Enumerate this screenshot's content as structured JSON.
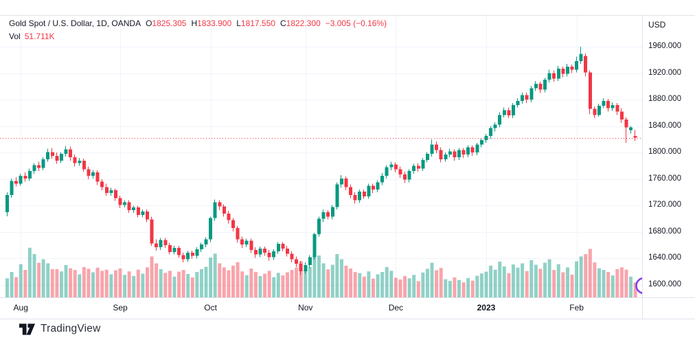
{
  "header": {
    "symbol": "Gold Spot / U.S. Dollar, 1D, OANDA",
    "o_label": "O",
    "o_value": "1825.305",
    "h_label": "H",
    "h_value": "1833.900",
    "l_label": "L",
    "l_value": "1817.550",
    "c_label": "C",
    "c_value": "1822.300",
    "change": "−3.005 (−0.16%)",
    "vol_label": "Vol",
    "vol_value": "51.711K"
  },
  "axes": {
    "currency_label": "USD"
  },
  "footer": {
    "logo_text": "TradingView"
  },
  "chart_data": {
    "type": "candlestick",
    "title": "Gold Spot / U.S. Dollar",
    "timeframe": "1D",
    "exchange": "OANDA",
    "legend_position": "top-left",
    "grid": true,
    "last_price": 1822.3,
    "last_change": -3.005,
    "last_change_pct": -0.16,
    "last_volume_k": 51.711,
    "y_ticks": [
      1960,
      1920,
      1880,
      1840,
      1800,
      1760,
      1720,
      1680,
      1640,
      1600
    ],
    "x_ticks": [
      {
        "label": "Aug",
        "index": 3,
        "bold": false
      },
      {
        "label": "Sep",
        "index": 25,
        "bold": false
      },
      {
        "label": "Oct",
        "index": 45,
        "bold": false
      },
      {
        "label": "Nov",
        "index": 66,
        "bold": false
      },
      {
        "label": "Dec",
        "index": 86,
        "bold": false
      },
      {
        "label": "2023",
        "index": 106,
        "bold": true
      },
      {
        "label": "Feb",
        "index": 126,
        "bold": false
      }
    ],
    "colors": {
      "up": "#089981",
      "down": "#f23645",
      "vol_up": "#089981",
      "vol_down": "#f23645",
      "price_line": "#f23645",
      "grid": "#f0f3fa",
      "border": "#e0e3eb",
      "watermark_arc": "#7c3aed"
    },
    "series_format": "[open, high, low, close, volume_k]",
    "candles": [
      [
        1710,
        1740,
        1704,
        1736,
        66
      ],
      [
        1736,
        1761,
        1732,
        1757,
        88
      ],
      [
        1757,
        1763,
        1749,
        1753,
        70
      ],
      [
        1753,
        1768,
        1750,
        1765,
        115
      ],
      [
        1765,
        1770,
        1756,
        1761,
        95
      ],
      [
        1761,
        1776,
        1757,
        1772,
        172
      ],
      [
        1772,
        1784,
        1768,
        1781,
        150
      ],
      [
        1781,
        1786,
        1772,
        1777,
        120
      ],
      [
        1777,
        1793,
        1773,
        1790,
        132
      ],
      [
        1790,
        1806,
        1786,
        1801,
        118
      ],
      [
        1801,
        1807,
        1791,
        1795,
        98
      ],
      [
        1795,
        1800,
        1783,
        1788,
        98
      ],
      [
        1788,
        1801,
        1784,
        1798,
        90
      ],
      [
        1798,
        1810,
        1794,
        1805,
        112
      ],
      [
        1805,
        1809,
        1788,
        1793,
        101
      ],
      [
        1793,
        1797,
        1779,
        1784,
        95
      ],
      [
        1784,
        1792,
        1780,
        1788,
        80
      ],
      [
        1788,
        1791,
        1771,
        1775,
        105
      ],
      [
        1775,
        1779,
        1760,
        1765,
        99
      ],
      [
        1765,
        1774,
        1761,
        1770,
        87
      ],
      [
        1770,
        1773,
        1751,
        1756,
        103
      ],
      [
        1756,
        1760,
        1743,
        1748,
        92
      ],
      [
        1748,
        1753,
        1735,
        1739,
        96
      ],
      [
        1739,
        1747,
        1735,
        1743,
        80
      ],
      [
        1743,
        1746,
        1727,
        1731,
        94
      ],
      [
        1731,
        1735,
        1716,
        1721,
        100
      ],
      [
        1721,
        1728,
        1717,
        1725,
        78
      ],
      [
        1725,
        1728,
        1709,
        1713,
        90
      ],
      [
        1713,
        1720,
        1709,
        1717,
        74
      ],
      [
        1717,
        1720,
        1702,
        1706,
        96
      ],
      [
        1706,
        1714,
        1702,
        1711,
        82
      ],
      [
        1711,
        1714,
        1695,
        1699,
        104
      ],
      [
        1699,
        1703,
        1659,
        1663,
        142
      ],
      [
        1663,
        1669,
        1652,
        1657,
        118
      ],
      [
        1657,
        1671,
        1653,
        1668,
        98
      ],
      [
        1668,
        1671,
        1656,
        1660,
        85
      ],
      [
        1660,
        1664,
        1646,
        1650,
        92
      ],
      [
        1650,
        1659,
        1646,
        1656,
        72
      ],
      [
        1656,
        1659,
        1641,
        1645,
        89
      ],
      [
        1645,
        1649,
        1634,
        1639,
        95
      ],
      [
        1639,
        1652,
        1635,
        1649,
        81
      ],
      [
        1649,
        1652,
        1640,
        1644,
        69
      ],
      [
        1644,
        1657,
        1640,
        1654,
        88
      ],
      [
        1654,
        1664,
        1650,
        1661,
        98
      ],
      [
        1661,
        1672,
        1657,
        1669,
        106
      ],
      [
        1669,
        1703,
        1665,
        1701,
        138
      ],
      [
        1701,
        1729,
        1697,
        1725,
        152
      ],
      [
        1725,
        1728,
        1713,
        1719,
        118
      ],
      [
        1719,
        1722,
        1703,
        1708,
        104
      ],
      [
        1708,
        1712,
        1693,
        1698,
        94
      ],
      [
        1698,
        1701,
        1681,
        1686,
        110
      ],
      [
        1686,
        1689,
        1664,
        1669,
        122
      ],
      [
        1669,
        1673,
        1656,
        1661,
        90
      ],
      [
        1661,
        1670,
        1657,
        1667,
        77
      ],
      [
        1667,
        1670,
        1648,
        1653,
        100
      ],
      [
        1653,
        1657,
        1641,
        1646,
        88
      ],
      [
        1646,
        1658,
        1642,
        1655,
        74
      ],
      [
        1655,
        1658,
        1644,
        1649,
        82
      ],
      [
        1649,
        1653,
        1637,
        1642,
        92
      ],
      [
        1642,
        1654,
        1638,
        1651,
        70
      ],
      [
        1651,
        1665,
        1647,
        1662,
        85
      ],
      [
        1662,
        1665,
        1651,
        1655,
        76
      ],
      [
        1655,
        1659,
        1643,
        1647,
        87
      ],
      [
        1647,
        1651,
        1634,
        1639,
        95
      ],
      [
        1639,
        1643,
        1627,
        1632,
        103
      ],
      [
        1632,
        1636,
        1615,
        1621,
        126
      ],
      [
        1621,
        1634,
        1617,
        1630,
        93
      ],
      [
        1630,
        1645,
        1626,
        1642,
        105
      ],
      [
        1642,
        1679,
        1638,
        1677,
        155
      ],
      [
        1677,
        1703,
        1673,
        1700,
        145
      ],
      [
        1700,
        1714,
        1695,
        1710,
        118
      ],
      [
        1710,
        1713,
        1699,
        1703,
        97
      ],
      [
        1703,
        1721,
        1699,
        1718,
        113
      ],
      [
        1718,
        1755,
        1714,
        1752,
        150
      ],
      [
        1752,
        1766,
        1747,
        1761,
        132
      ],
      [
        1761,
        1764,
        1743,
        1748,
        110
      ],
      [
        1748,
        1752,
        1731,
        1736,
        100
      ],
      [
        1736,
        1740,
        1723,
        1728,
        88
      ],
      [
        1728,
        1744,
        1724,
        1741,
        84
      ],
      [
        1741,
        1744,
        1730,
        1734,
        72
      ],
      [
        1734,
        1753,
        1730,
        1750,
        90
      ],
      [
        1750,
        1753,
        1739,
        1744,
        65
      ],
      [
        1744,
        1758,
        1740,
        1755,
        80
      ],
      [
        1755,
        1769,
        1751,
        1765,
        88
      ],
      [
        1765,
        1781,
        1761,
        1778,
        105
      ],
      [
        1778,
        1786,
        1773,
        1782,
        92
      ],
      [
        1782,
        1785,
        1770,
        1775,
        68
      ],
      [
        1775,
        1779,
        1762,
        1767,
        62
      ],
      [
        1767,
        1771,
        1754,
        1759,
        74
      ],
      [
        1759,
        1775,
        1755,
        1772,
        66
      ],
      [
        1772,
        1783,
        1768,
        1780,
        78
      ],
      [
        1780,
        1784,
        1771,
        1776,
        56
      ],
      [
        1776,
        1792,
        1772,
        1789,
        86
      ],
      [
        1789,
        1801,
        1785,
        1798,
        99
      ],
      [
        1798,
        1820,
        1794,
        1812,
        120
      ],
      [
        1812,
        1817,
        1799,
        1804,
        94
      ],
      [
        1804,
        1808,
        1785,
        1790,
        102
      ],
      [
        1790,
        1800,
        1786,
        1797,
        63
      ],
      [
        1797,
        1806,
        1793,
        1802,
        57
      ],
      [
        1802,
        1805,
        1788,
        1793,
        69
      ],
      [
        1793,
        1807,
        1789,
        1804,
        60
      ],
      [
        1804,
        1807,
        1792,
        1797,
        52
      ],
      [
        1797,
        1811,
        1793,
        1808,
        67
      ],
      [
        1808,
        1811,
        1795,
        1800,
        58
      ],
      [
        1800,
        1815,
        1796,
        1812,
        75
      ],
      [
        1812,
        1822,
        1808,
        1819,
        83
      ],
      [
        1819,
        1828,
        1815,
        1825,
        89
      ],
      [
        1825,
        1840,
        1821,
        1837,
        110
      ],
      [
        1837,
        1846,
        1832,
        1842,
        96
      ],
      [
        1842,
        1861,
        1838,
        1857,
        124
      ],
      [
        1857,
        1868,
        1853,
        1864,
        107
      ],
      [
        1864,
        1868,
        1852,
        1856,
        84
      ],
      [
        1856,
        1875,
        1852,
        1872,
        114
      ],
      [
        1872,
        1882,
        1868,
        1878,
        103
      ],
      [
        1878,
        1891,
        1874,
        1887,
        118
      ],
      [
        1887,
        1891,
        1875,
        1880,
        91
      ],
      [
        1880,
        1901,
        1876,
        1897,
        129
      ],
      [
        1897,
        1908,
        1893,
        1904,
        113
      ],
      [
        1904,
        1907,
        1890,
        1895,
        99
      ],
      [
        1895,
        1913,
        1891,
        1910,
        120
      ],
      [
        1910,
        1925,
        1906,
        1920,
        132
      ],
      [
        1920,
        1924,
        1907,
        1912,
        95
      ],
      [
        1912,
        1931,
        1908,
        1927,
        115
      ],
      [
        1927,
        1930,
        1914,
        1919,
        87
      ],
      [
        1919,
        1934,
        1915,
        1930,
        104
      ],
      [
        1930,
        1933,
        1920,
        1925,
        79
      ],
      [
        1925,
        1945,
        1921,
        1938,
        125
      ],
      [
        1938,
        1960,
        1934,
        1949,
        142
      ],
      [
        1946,
        1950,
        1915,
        1921,
        150
      ],
      [
        1921,
        1924,
        1858,
        1866,
        168
      ],
      [
        1866,
        1870,
        1852,
        1857,
        121
      ],
      [
        1857,
        1874,
        1854,
        1871,
        101
      ],
      [
        1871,
        1882,
        1867,
        1878,
        95
      ],
      [
        1878,
        1881,
        1862,
        1867,
        88
      ],
      [
        1867,
        1876,
        1863,
        1872,
        76
      ],
      [
        1872,
        1875,
        1857,
        1862,
        98
      ],
      [
        1862,
        1867,
        1845,
        1850,
        104
      ],
      [
        1850,
        1853,
        1815,
        1838,
        96
      ],
      [
        1834,
        1840,
        1829,
        1838,
        72
      ],
      [
        1825.305,
        1833.9,
        1817.55,
        1822.3,
        51.711
      ]
    ]
  }
}
